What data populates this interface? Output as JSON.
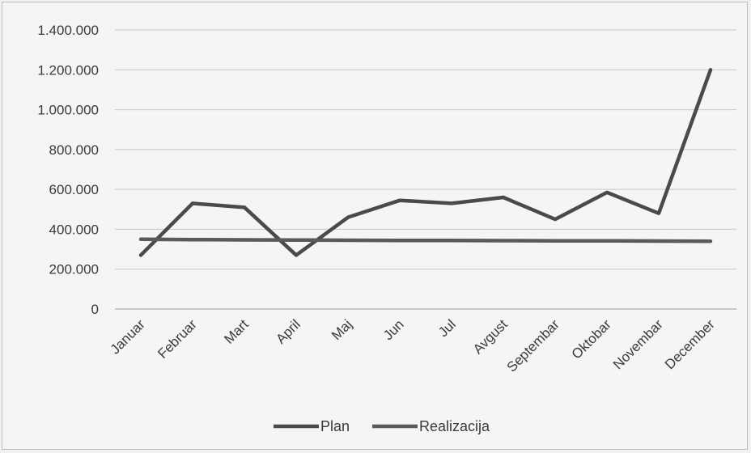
{
  "chart_data": {
    "type": "line",
    "categories": [
      "Januar",
      "Februar",
      "Mart",
      "April",
      "Maj",
      "Jun",
      "Jul",
      "Avgust",
      "Septembar",
      "Oktobar",
      "Novembar",
      "December"
    ],
    "series": [
      {
        "name": "Plan",
        "values": [
          270000,
          530000,
          510000,
          270000,
          460000,
          545000,
          530000,
          560000,
          450000,
          585000,
          480000,
          1200000
        ],
        "color": "#4a4a4a"
      },
      {
        "name": "Realizacija",
        "values": [
          350000,
          348000,
          347000,
          346000,
          345000,
          344000,
          344000,
          343000,
          342000,
          342000,
          341000,
          340000
        ],
        "color": "#5a5a5a"
      }
    ],
    "y_ticks": [
      "0",
      "200.000",
      "400.000",
      "600.000",
      "800.000",
      "1.000.000",
      "1.200.000",
      "1.400.000"
    ],
    "ylim": [
      0,
      1400000
    ],
    "grid": true,
    "legend_position": "bottom",
    "title": "",
    "xlabel": "",
    "ylabel": ""
  }
}
